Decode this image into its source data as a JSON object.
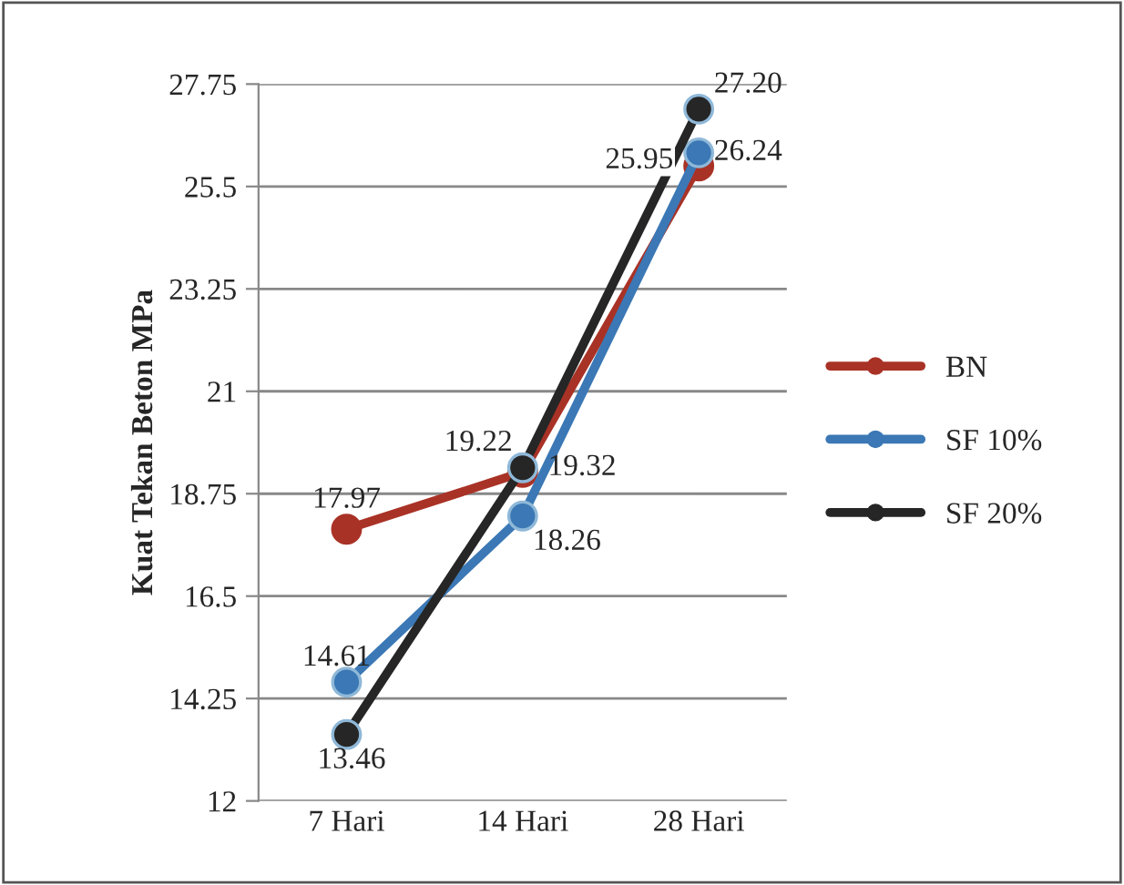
{
  "chart_data": {
    "type": "line",
    "ylabel": "Kuat Tekan Beton MPa",
    "categories": [
      "7 Hari",
      "14 Hari",
      "28 Hari"
    ],
    "series": [
      {
        "name": "BN",
        "color": "#a93226",
        "values": [
          17.97,
          19.22,
          25.95
        ]
      },
      {
        "name": "SF 10%",
        "color": "#3b78b5",
        "values": [
          14.61,
          18.26,
          26.24
        ]
      },
      {
        "name": "SF 20%",
        "color": "#262626",
        "values": [
          13.46,
          19.32,
          27.2
        ],
        "value_labels": [
          "13.46",
          "19.32",
          "27.20"
        ]
      }
    ],
    "ylim": [
      12,
      27.75
    ],
    "yticks": [
      12,
      14.25,
      16.5,
      18.75,
      21,
      23.25,
      25.5,
      27.75
    ],
    "grid": "y",
    "legend": "right",
    "marker": "circle",
    "data_labels": true
  }
}
